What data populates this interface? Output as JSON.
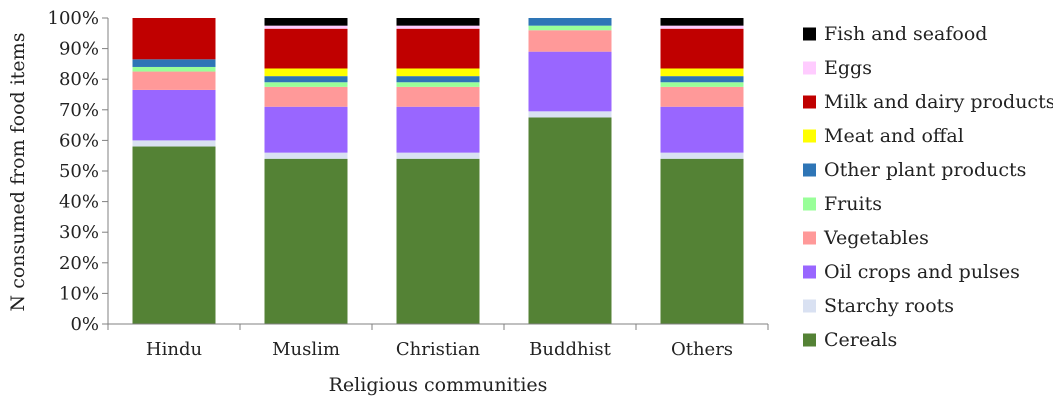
{
  "chart_data": {
    "type": "bar",
    "stacked": true,
    "title": "",
    "xlabel": "Religious communities",
    "ylabel": "N consumed from food items",
    "ylim": [
      0,
      100
    ],
    "yticks": [
      0,
      10,
      20,
      30,
      40,
      50,
      60,
      70,
      80,
      90,
      100
    ],
    "ytick_suffix": "%",
    "categories": [
      "Hindu",
      "Muslim",
      "Christian",
      "Buddhist",
      "Others"
    ],
    "series": [
      {
        "name": "Cereals",
        "color": "#548235",
        "values": [
          58,
          54,
          54,
          67.5,
          54
        ]
      },
      {
        "name": "Starchy roots",
        "color": "#d9e1f2",
        "values": [
          2,
          2,
          2,
          2,
          2
        ]
      },
      {
        "name": "Oil crops and pulses",
        "color": "#9966ff",
        "values": [
          16.5,
          15,
          15,
          19.5,
          15
        ]
      },
      {
        "name": "Vegetables",
        "color": "#ff9999",
        "values": [
          6,
          6.5,
          6.5,
          7,
          6.5
        ]
      },
      {
        "name": "Fruits",
        "color": "#99ff99",
        "values": [
          1.5,
          1.5,
          1.5,
          1.5,
          1.5
        ]
      },
      {
        "name": "Other plant products",
        "color": "#2e75b6",
        "values": [
          2.5,
          2,
          2,
          2.5,
          2
        ]
      },
      {
        "name": "Meat and offal",
        "color": "#ffff00",
        "values": [
          0,
          2.5,
          2.5,
          0,
          2.5
        ]
      },
      {
        "name": "Milk and dairy products",
        "color": "#c00000",
        "values": [
          13.5,
          13,
          13,
          0,
          13
        ]
      },
      {
        "name": "Eggs",
        "color": "#ffccff",
        "values": [
          0,
          1,
          1,
          0,
          1
        ]
      },
      {
        "name": "Fish and seafood",
        "color": "#000000",
        "values": [
          0,
          2.5,
          2.5,
          0,
          2.5
        ]
      }
    ],
    "legend_position": "right",
    "grid": false
  }
}
